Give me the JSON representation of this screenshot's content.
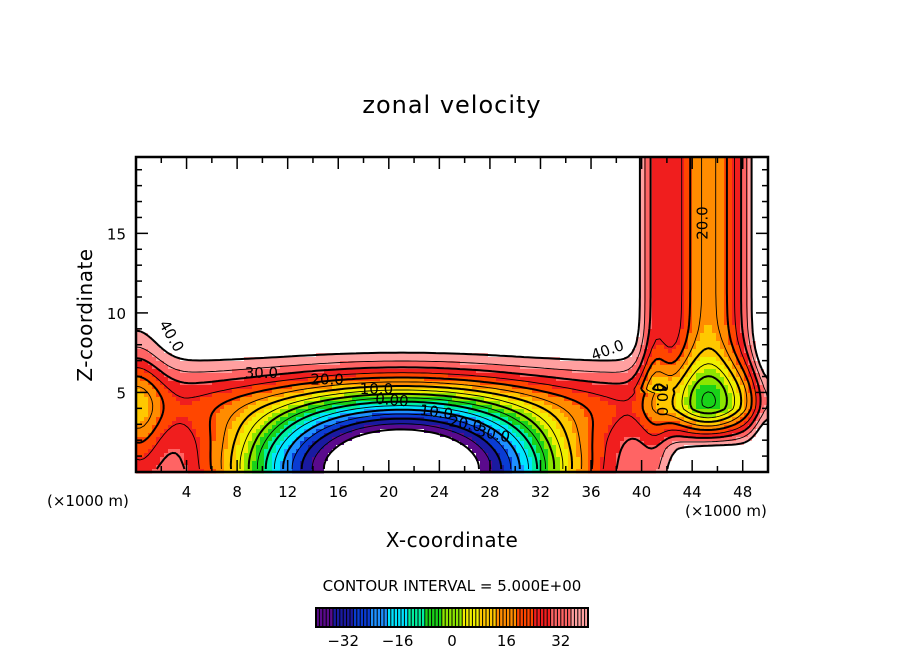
{
  "chart_data": {
    "type": "heatmap",
    "subtype": "filled-contour",
    "title": "zonal velocity",
    "xlabel": "X-coordinate",
    "ylabel": "Z-coordinate",
    "x_unit_label": "(×1000 m)",
    "y_unit_label": "(×1000 m)",
    "xlim": [
      0,
      50
    ],
    "ylim": [
      0,
      19.8
    ],
    "xticks": [
      4,
      8,
      12,
      16,
      20,
      24,
      28,
      32,
      36,
      40,
      44,
      48
    ],
    "yticks": [
      5,
      10,
      15
    ],
    "contour_interval_text": "CONTOUR INTERVAL = 5.000E+00",
    "contour_interval": 5,
    "value_range": [
      -40,
      40
    ],
    "colorbar": {
      "orientation": "horizontal",
      "ticks": [
        -32,
        -16,
        0,
        16,
        32
      ],
      "tick_labels": [
        "−32",
        "−16",
        "0",
        "16",
        "32"
      ],
      "colors": [
        "#5a0a8c",
        "#1a1aa0",
        "#0a3cd2",
        "#1e90ff",
        "#00e5ff",
        "#00f0a0",
        "#19d219",
        "#8ce600",
        "#f0f000",
        "#ffc800",
        "#ff8c00",
        "#ff4600",
        "#f01e1e",
        "#ff6464",
        "#ffa0a0"
      ]
    },
    "contour_labels": [
      {
        "text": "40.0",
        "x": 1.8,
        "z": 9.3,
        "angle": 60
      },
      {
        "text": "30.0",
        "x": 8.6,
        "z": 5.9,
        "angle": 0
      },
      {
        "text": "20.0",
        "x": 13.8,
        "z": 5.5,
        "angle": 0
      },
      {
        "text": "10.0",
        "x": 17.7,
        "z": 4.9,
        "angle": 0
      },
      {
        "text": "0.00",
        "x": 18.9,
        "z": 4.3,
        "angle": 5
      },
      {
        "text": "10.0",
        "x": 22.4,
        "z": 3.6,
        "angle": 8
      },
      {
        "text": "20.0",
        "x": 24.7,
        "z": 2.9,
        "angle": 10
      },
      {
        "text": "30.0",
        "x": 26.9,
        "z": 2.3,
        "angle": 12
      },
      {
        "text": "40.0",
        "x": 36.2,
        "z": 7.0,
        "angle": -20
      },
      {
        "text": "30.0",
        "x": 41.2,
        "z": 5.6,
        "angle": 90
      },
      {
        "text": "20.0",
        "x": 45.2,
        "z": 14.6,
        "angle": -90
      }
    ],
    "regions_beyond_range": [
      {
        "description": "upper-left white region (> 40)",
        "x_range": [
          0.5,
          39.5
        ],
        "z_range": [
          7,
          19.8
        ]
      },
      {
        "description": "bottom-center white region (< -40)",
        "x_range": [
          11.5,
          30.5
        ],
        "z_range": [
          0,
          2
        ]
      },
      {
        "description": "bottom-right white region (> 40)",
        "x_range": [
          42.5,
          49.5
        ],
        "z_range": [
          0,
          1.8
        ]
      }
    ],
    "grid": false,
    "legend": "bottom-center"
  }
}
